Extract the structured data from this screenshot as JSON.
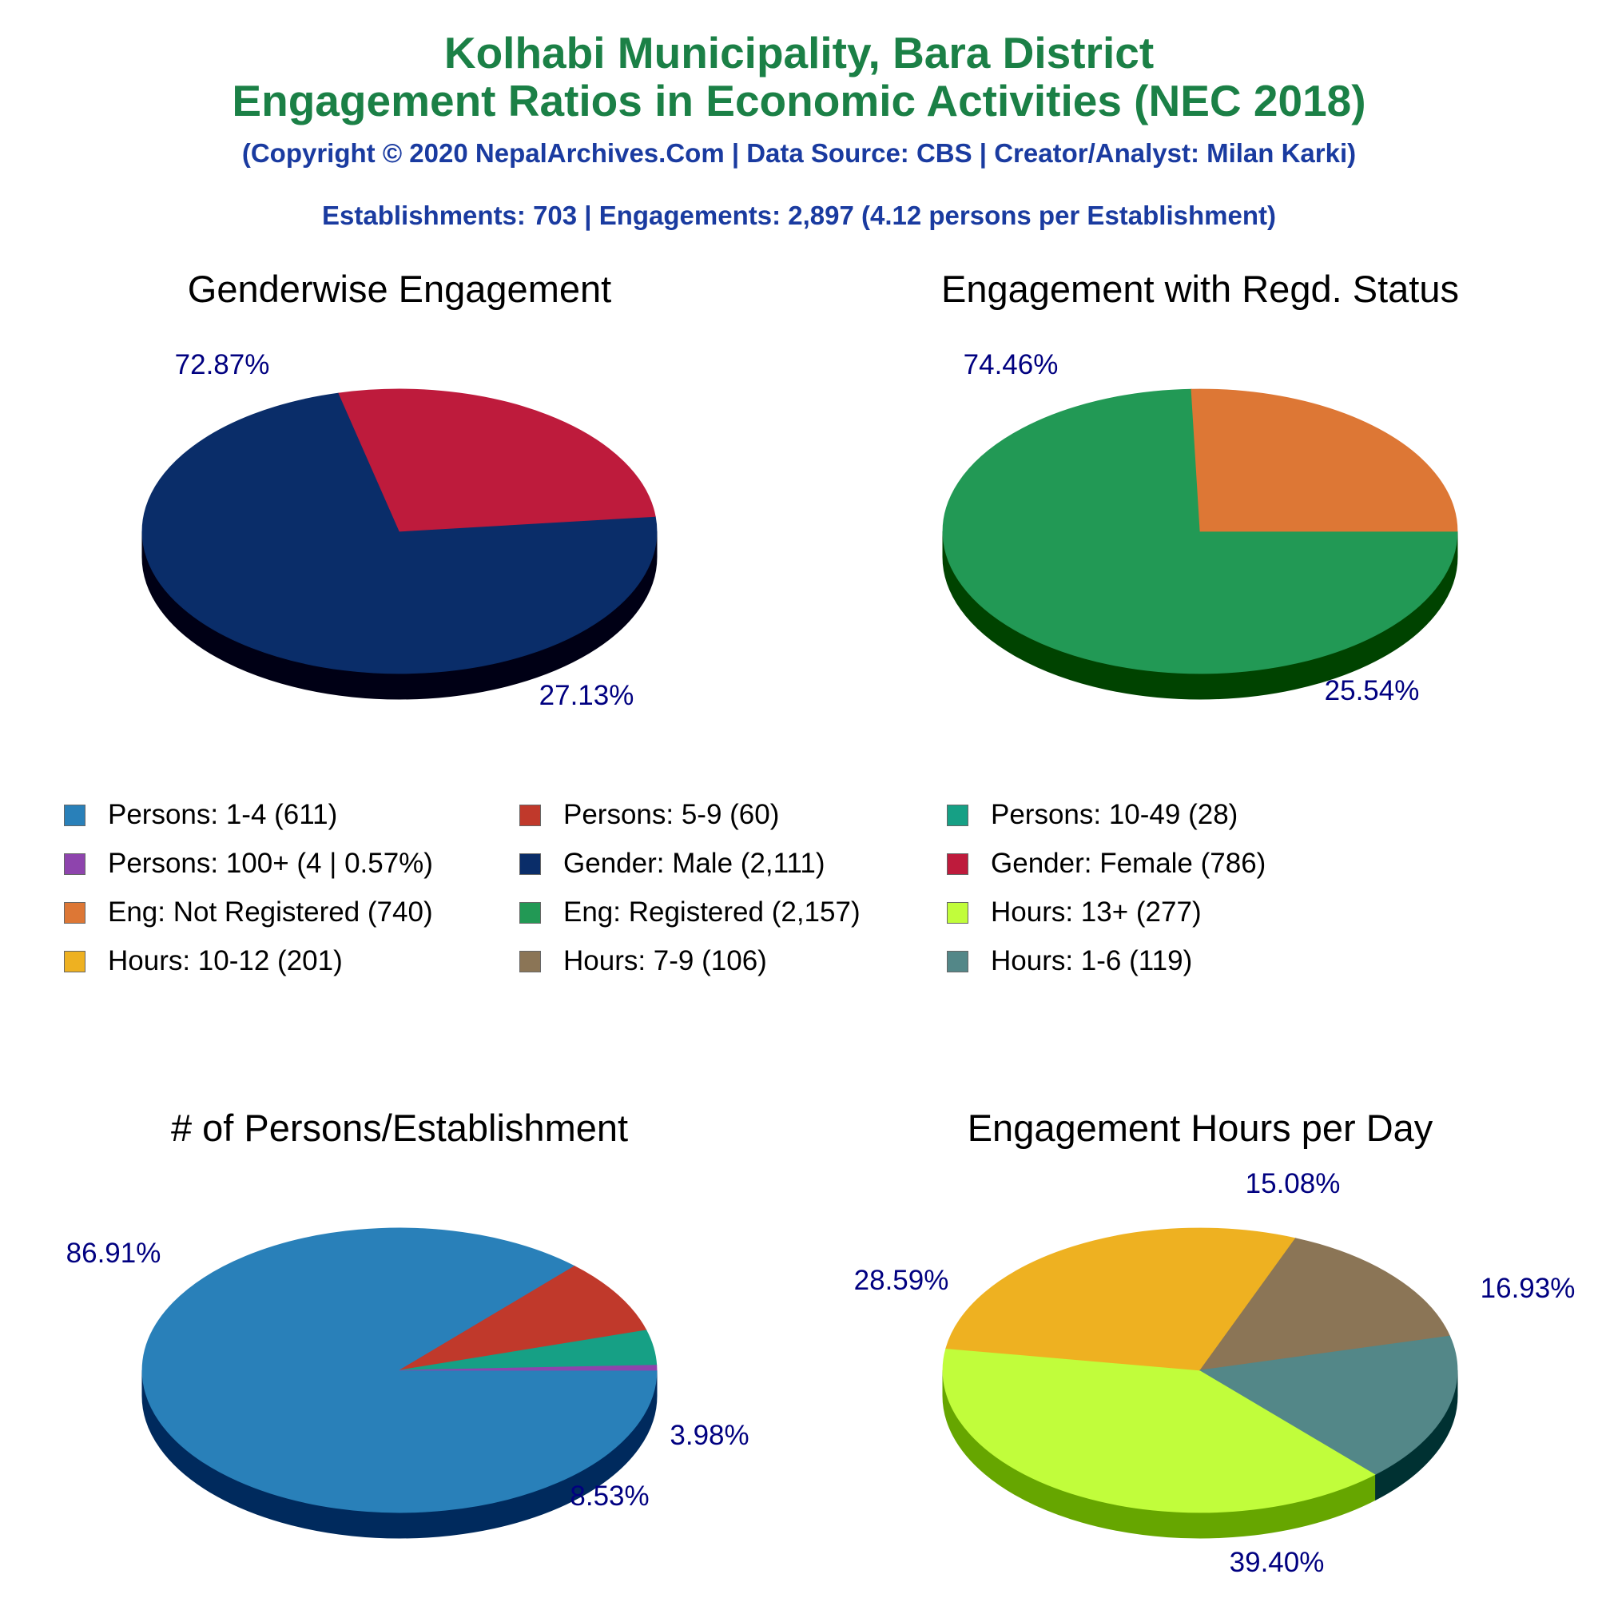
{
  "header": {
    "title_line1": "Kolhabi Municipality, Bara District",
    "title_line2": "Engagement Ratios in Economic Activities (NEC 2018)",
    "copyright": "(Copyright © 2020 NepalArchives.Com | Data Source: CBS | Creator/Analyst: Milan Karki)",
    "summary": "Establishments: 703 | Engagements: 2,897 (4.12 persons per Establishment)"
  },
  "colors": {
    "title": "#1b8046",
    "subtitle": "#1a3ba0",
    "pct_label": "#000080"
  },
  "legend": [
    {
      "label": "Persons: 1-4 (611)",
      "color": "#2980b9"
    },
    {
      "label": "Persons: 5-9 (60)",
      "color": "#c0392b"
    },
    {
      "label": "Persons: 10-49 (28)",
      "color": "#16a085"
    },
    {
      "label": "Persons: 100+ (4 | 0.57%)",
      "color": "#8e44ad"
    },
    {
      "label": "Gender: Male (2,111)",
      "color": "#0a2d69"
    },
    {
      "label": "Gender: Female (786)",
      "color": "#be1b3c"
    },
    {
      "label": "Eng: Not Registered (740)",
      "color": "#dd7735"
    },
    {
      "label": "Eng: Registered (2,157)",
      "color": "#229955"
    },
    {
      "label": "Hours: 13+ (277)",
      "color": "#c1fd3b"
    },
    {
      "label": "Hours: 10-12 (201)",
      "color": "#eeb121"
    },
    {
      "label": "Hours: 7-9 (106)",
      "color": "#8b7556"
    },
    {
      "label": "Hours: 1-6 (119)",
      "color": "#538788"
    }
  ],
  "chart_data": [
    {
      "type": "pie",
      "title": "Genderwise Engagement",
      "slices": [
        {
          "label": "Gender: Male (2,111)",
          "value": 2111,
          "pct": "72.87%",
          "color": "#0a2d69",
          "side": "#000015"
        },
        {
          "label": "Gender: Female (786)",
          "value": 786,
          "pct": "27.13%",
          "color": "#be1b3c",
          "side": "#680000"
        }
      ]
    },
    {
      "type": "pie",
      "title": "Engagement with Regd. Status",
      "slices": [
        {
          "label": "Eng: Registered (2,157)",
          "value": 2157,
          "pct": "74.46%",
          "color": "#229955",
          "side": "#004300"
        },
        {
          "label": "Eng: Not Registered (740)",
          "value": 740,
          "pct": "25.54%",
          "color": "#dd7735",
          "side": "#7f1c00"
        }
      ]
    },
    {
      "type": "pie",
      "title": "# of Persons/Establishment",
      "slices": [
        {
          "label": "Persons: 1-4 (611)",
          "value": 611,
          "pct": "86.91%",
          "color": "#2980b9",
          "side": "#002a5d"
        },
        {
          "label": "Persons: 5-9 (60)",
          "value": 60,
          "pct": "8.53%",
          "color": "#c0392b",
          "side": "#6a0000"
        },
        {
          "label": "Persons: 10-49 (28)",
          "value": 28,
          "pct": "3.98%",
          "color": "#16a085",
          "side": "#004a30"
        },
        {
          "label": "Persons: 100+ (4 | 0.57%)",
          "value": 4,
          "pct": "",
          "color": "#8e44ad",
          "side": "#380058"
        }
      ]
    },
    {
      "type": "pie",
      "title": "Engagement Hours per Day",
      "slices": [
        {
          "label": "Hours: 13+ (277)",
          "value": 277,
          "pct": "39.40%",
          "color": "#c1fd3b",
          "side": "#66a600"
        },
        {
          "label": "Hours: 10-12 (201)",
          "value": 201,
          "pct": "28.59%",
          "color": "#eeb121",
          "side": "#985a00"
        },
        {
          "label": "Hours: 7-9 (106)",
          "value": 106,
          "pct": "15.08%",
          "color": "#8b7556",
          "side": "#352000"
        },
        {
          "label": "Hours: 1-6 (119)",
          "value": 119,
          "pct": "16.93%",
          "color": "#538788",
          "side": "#003132"
        }
      ]
    }
  ]
}
